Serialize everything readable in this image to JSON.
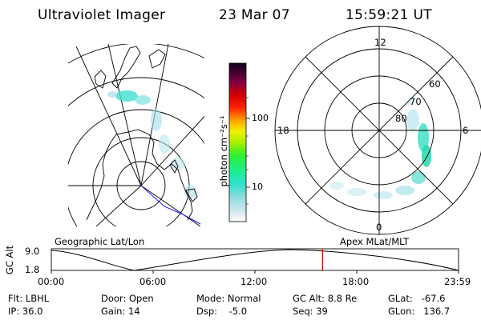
{
  "header": {
    "instrument": "Ultraviolet Imager",
    "date": "23 Mar 07",
    "time": "15:59:21 UT"
  },
  "colorbar": {
    "unit_label": "photon cm⁻²s⁻¹",
    "ticks": [
      "100",
      "10"
    ]
  },
  "polar": {
    "mlt_labels": {
      "top": "12",
      "bottom": "0",
      "left": "18",
      "right": "6"
    },
    "lat_labels": [
      "60",
      "70",
      "80"
    ]
  },
  "map_labels": {
    "left": "Geographic Lat/Lon",
    "right": "Apex MLat/MLT"
  },
  "altitude_plot": {
    "ylabel": "GC Alt",
    "y_ticks": [
      "9.0",
      "1.8"
    ],
    "x_ticks": [
      "00:00",
      "06:00",
      "12:00",
      "18:00",
      "23:59"
    ],
    "current_time_fraction": 0.666
  },
  "info_rows": [
    [
      {
        "label": "Flt:",
        "value": "LBHL"
      },
      {
        "label": "Door:",
        "value": "Open"
      },
      {
        "label": "Mode:",
        "value": "Normal"
      },
      {
        "label": "GC Alt:",
        "value": "8.8 Re"
      },
      {
        "label": "GLat:",
        "value": "-67.6"
      }
    ],
    [
      {
        "label": "IP:",
        "value": "36.0"
      },
      {
        "label": "Gain:",
        "value": "14"
      },
      {
        "label": "Dsp:",
        "value": "-5.0"
      },
      {
        "label": "Seq:",
        "value": "39"
      },
      {
        "label": "GLon:",
        "value": "136.7"
      }
    ]
  ],
  "colors": {
    "current_time_marker": "#cc0000",
    "trajectory": "#1a1aff"
  }
}
